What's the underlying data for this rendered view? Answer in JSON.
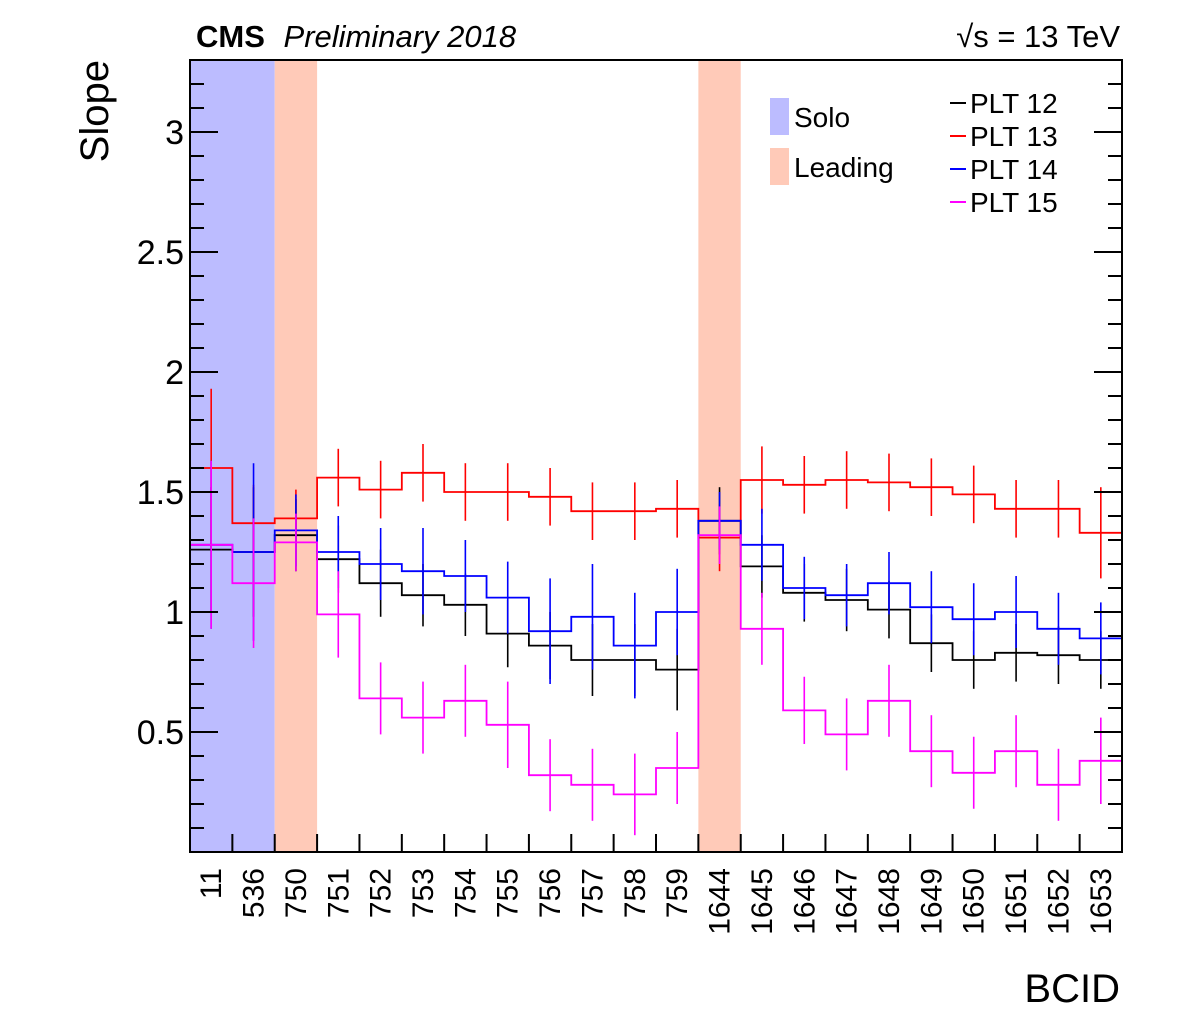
{
  "header": {
    "experiment": "CMS",
    "status": "Preliminary 2018",
    "energy_sqrt": "√s",
    "energy_rest": " = 13 TeV"
  },
  "chart_data": {
    "type": "line",
    "xlabel": "BCID",
    "ylabel": "Slope",
    "categories": [
      "11",
      "536",
      "750",
      "751",
      "752",
      "753",
      "754",
      "755",
      "756",
      "757",
      "758",
      "759",
      "1644",
      "1645",
      "1646",
      "1647",
      "1648",
      "1649",
      "1650",
      "1651",
      "1652",
      "1653"
    ],
    "ylim": [
      0,
      3.3
    ],
    "yticks": [
      0.5,
      1,
      1.5,
      2,
      2.5,
      3
    ],
    "ytick_labels": [
      "0.5",
      "1",
      "1.5",
      "2",
      "2.5",
      "3"
    ],
    "series": [
      {
        "name": "PLT 12",
        "color": "#000000",
        "values": [
          1.26,
          1.25,
          1.32,
          1.22,
          1.12,
          1.07,
          1.03,
          0.91,
          0.86,
          0.8,
          0.8,
          0.76,
          1.38,
          1.19,
          1.08,
          1.05,
          1.01,
          0.87,
          0.8,
          0.83,
          0.82,
          0.8
        ],
        "errors": [
          0.26,
          0.27,
          0.15,
          0.14,
          0.14,
          0.13,
          0.13,
          0.14,
          0.14,
          0.15,
          0.15,
          0.17,
          0.14,
          0.13,
          0.12,
          0.13,
          0.12,
          0.12,
          0.12,
          0.12,
          0.12,
          0.12
        ]
      },
      {
        "name": "PLT 13",
        "color": "#ff0000",
        "values": [
          1.6,
          1.37,
          1.39,
          1.56,
          1.51,
          1.58,
          1.5,
          1.5,
          1.48,
          1.42,
          1.42,
          1.43,
          1.31,
          1.55,
          1.53,
          1.55,
          1.54,
          1.52,
          1.49,
          1.43,
          1.43,
          1.33
        ],
        "errors": [
          0.33,
          0.16,
          0.12,
          0.12,
          0.12,
          0.12,
          0.12,
          0.12,
          0.12,
          0.12,
          0.12,
          0.12,
          0.14,
          0.14,
          0.12,
          0.12,
          0.12,
          0.12,
          0.12,
          0.12,
          0.12,
          0.19
        ]
      },
      {
        "name": "PLT 14",
        "color": "#0000ff",
        "values": [
          1.28,
          1.25,
          1.34,
          1.25,
          1.2,
          1.17,
          1.15,
          1.06,
          0.92,
          0.98,
          0.86,
          1.0,
          1.38,
          1.28,
          1.1,
          1.07,
          1.12,
          1.02,
          0.97,
          1.0,
          0.93,
          0.89
        ],
        "errors": [
          0.35,
          0.37,
          0.15,
          0.15,
          0.15,
          0.18,
          0.15,
          0.15,
          0.22,
          0.22,
          0.22,
          0.18,
          0.12,
          0.15,
          0.13,
          0.13,
          0.13,
          0.15,
          0.15,
          0.15,
          0.15,
          0.15
        ]
      },
      {
        "name": "PLT 15",
        "color": "#ff00ff",
        "values": [
          1.28,
          1.12,
          1.29,
          0.99,
          0.64,
          0.56,
          0.63,
          0.53,
          0.32,
          0.28,
          0.24,
          0.35,
          1.32,
          0.93,
          0.59,
          0.49,
          0.63,
          0.42,
          0.33,
          0.42,
          0.28,
          0.38
        ],
        "errors": [
          0.35,
          0.27,
          0.12,
          0.18,
          0.15,
          0.15,
          0.15,
          0.18,
          0.15,
          0.15,
          0.17,
          0.15,
          0.12,
          0.15,
          0.14,
          0.15,
          0.15,
          0.15,
          0.15,
          0.15,
          0.15,
          0.18
        ]
      }
    ],
    "bands": [
      {
        "name": "Solo",
        "color": "#bcbcff",
        "from_index": 0,
        "to_index": 1
      },
      {
        "name": "Leading",
        "color": "#ffcab8",
        "from_index": 2,
        "to_index": 2
      },
      {
        "name": "Leading",
        "color": "#ffcab8",
        "from_index": 12,
        "to_index": 12
      }
    ],
    "band_legend": [
      {
        "label": "Solo",
        "color": "#bcbcff"
      },
      {
        "label": "Leading",
        "color": "#ffcab8"
      }
    ],
    "legend_position": "top-right"
  }
}
